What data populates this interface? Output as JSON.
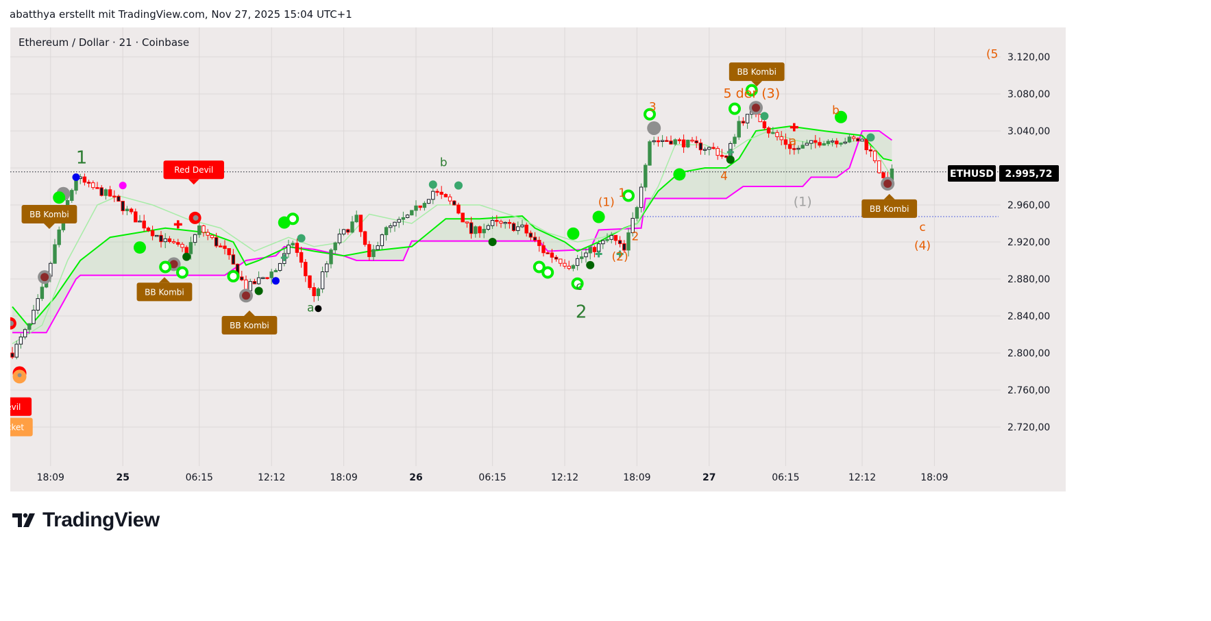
{
  "header": {
    "caption": "abatthya erstellt mit TradingView.com, Nov 27, 2025 15:04 UTC+1"
  },
  "chart": {
    "symbol_title": "Ethereum / Dollar · 21 · Coinbase"
  },
  "price_badge": {
    "ticker": "ETHUSD",
    "price": "2.995,72"
  },
  "logo": {
    "text": "TradingView"
  },
  "colors": {
    "up_green": "#3a8f4a",
    "down_red": "#ff0000",
    "band_magenta": "#ff00ff",
    "line_green": "#00ee00",
    "line_lightgreen": "#9ee89e",
    "callout_brown": "#a06000",
    "wave_orange": "#e65c00",
    "wave_green": "#2e7d32"
  },
  "chart_data": {
    "type": "candlestick",
    "title": "Ethereum / Dollar · 21 · Coinbase",
    "ylim": [
      2690,
      3150
    ],
    "y_ticks": [
      {
        "value": 3120,
        "label": "3.120,00"
      },
      {
        "value": 3080,
        "label": "3.080,00"
      },
      {
        "value": 3040,
        "label": "3.040,00"
      },
      {
        "value": 2960,
        "label": "2.960,00"
      },
      {
        "value": 2920,
        "label": "2.920,00"
      },
      {
        "value": 2880,
        "label": "2.880,00"
      },
      {
        "value": 2840,
        "label": "2.840,00"
      },
      {
        "value": 2800,
        "label": "2.800,00"
      },
      {
        "value": 2760,
        "label": "2.760,00"
      },
      {
        "value": 2720,
        "label": "2.720,00"
      }
    ],
    "x_ticks": [
      {
        "bar": 9,
        "label": "18:09",
        "bold": false
      },
      {
        "bar": 26,
        "label": "25",
        "bold": true
      },
      {
        "bar": 44,
        "label": "06:15",
        "bold": false
      },
      {
        "bar": 61,
        "label": "12:12",
        "bold": false
      },
      {
        "bar": 78,
        "label": "18:09",
        "bold": false
      },
      {
        "bar": 95,
        "label": "26",
        "bold": true
      },
      {
        "bar": 113,
        "label": "06:15",
        "bold": false
      },
      {
        "bar": 130,
        "label": "12:12",
        "bold": false
      },
      {
        "bar": 147,
        "label": "18:09",
        "bold": false
      },
      {
        "bar": 164,
        "label": "27",
        "bold": true
      },
      {
        "bar": 182,
        "label": "06:15",
        "bold": false
      },
      {
        "bar": 200,
        "label": "12:12",
        "bold": false
      },
      {
        "bar": 217,
        "label": "18:09",
        "bold": false
      }
    ],
    "last_price": 2995.72,
    "horizontal_line": 2947.4,
    "price_path": [
      [
        0,
        2800
      ],
      [
        4,
        2830
      ],
      [
        8,
        2880
      ],
      [
        12,
        2950
      ],
      [
        15,
        2990
      ],
      [
        18,
        2980
      ],
      [
        23,
        2970
      ],
      [
        29,
        2945
      ],
      [
        36,
        2920
      ],
      [
        41,
        2910
      ],
      [
        44,
        2935
      ],
      [
        50,
        2910
      ],
      [
        55,
        2870
      ],
      [
        62,
        2890
      ],
      [
        66,
        2920
      ],
      [
        71,
        2860
      ],
      [
        76,
        2920
      ],
      [
        81,
        2945
      ],
      [
        84,
        2900
      ],
      [
        87,
        2930
      ],
      [
        94,
        2950
      ],
      [
        99,
        2975
      ],
      [
        104,
        2960
      ],
      [
        108,
        2930
      ],
      [
        113,
        2940
      ],
      [
        120,
        2935
      ],
      [
        125,
        2910
      ],
      [
        131,
        2895
      ],
      [
        136,
        2910
      ],
      [
        141,
        2925
      ],
      [
        144,
        2910
      ],
      [
        147,
        2960
      ],
      [
        150,
        3030
      ],
      [
        155,
        3030
      ],
      [
        165,
        3020
      ],
      [
        168,
        3010
      ],
      [
        171,
        3050
      ],
      [
        175,
        3060
      ],
      [
        178,
        3040
      ],
      [
        184,
        3020
      ],
      [
        191,
        3030
      ],
      [
        200,
        3030
      ],
      [
        203,
        3010
      ],
      [
        205,
        2985
      ],
      [
        207,
        2995
      ]
    ],
    "series": [
      {
        "name": "lower band",
        "color": "#ff00ff",
        "points": [
          [
            0,
            2822
          ],
          [
            8,
            2822
          ],
          [
            12,
            2855
          ],
          [
            15,
            2880
          ],
          [
            16,
            2884
          ],
          [
            50,
            2884
          ],
          [
            55,
            2900
          ],
          [
            62,
            2905
          ],
          [
            64,
            2915
          ],
          [
            71,
            2912
          ],
          [
            78,
            2905
          ],
          [
            81,
            2900
          ],
          [
            92,
            2900
          ],
          [
            94,
            2921
          ],
          [
            124,
            2921
          ],
          [
            126,
            2910
          ],
          [
            136,
            2912
          ],
          [
            138,
            2933
          ],
          [
            148,
            2935
          ],
          [
            149,
            2967
          ],
          [
            168,
            2967
          ],
          [
            172,
            2980
          ],
          [
            186,
            2980
          ],
          [
            188,
            2990
          ],
          [
            194,
            2990
          ],
          [
            197,
            3000
          ],
          [
            200,
            3040
          ],
          [
            204,
            3040
          ],
          [
            207,
            3030
          ]
        ]
      },
      {
        "name": "fast line",
        "color": "#00ee00",
        "points": [
          [
            0,
            2850
          ],
          [
            4,
            2828
          ],
          [
            10,
            2860
          ],
          [
            16,
            2900
          ],
          [
            23,
            2925
          ],
          [
            36,
            2935
          ],
          [
            46,
            2930
          ],
          [
            52,
            2920
          ],
          [
            55,
            2895
          ],
          [
            58,
            2900
          ],
          [
            65,
            2915
          ],
          [
            71,
            2910
          ],
          [
            78,
            2905
          ],
          [
            84,
            2910
          ],
          [
            94,
            2915
          ],
          [
            102,
            2945
          ],
          [
            110,
            2945
          ],
          [
            120,
            2948
          ],
          [
            123,
            2935
          ],
          [
            130,
            2920
          ],
          [
            133,
            2910
          ],
          [
            138,
            2920
          ],
          [
            144,
            2935
          ],
          [
            147,
            2940
          ],
          [
            152,
            2975
          ],
          [
            157,
            2995
          ],
          [
            163,
            3000
          ],
          [
            168,
            3000
          ],
          [
            171,
            3010
          ],
          [
            175,
            3040
          ],
          [
            183,
            3045
          ],
          [
            191,
            3040
          ],
          [
            200,
            3035
          ],
          [
            205,
            3010
          ],
          [
            207,
            3008
          ]
        ]
      },
      {
        "name": "slow line",
        "color": "#a8eca8",
        "points": [
          [
            0,
            2810
          ],
          [
            7,
            2830
          ],
          [
            13,
            2900
          ],
          [
            20,
            2960
          ],
          [
            25,
            2970
          ],
          [
            33,
            2960
          ],
          [
            41,
            2945
          ],
          [
            49,
            2935
          ],
          [
            57,
            2910
          ],
          [
            65,
            2925
          ],
          [
            71,
            2915
          ],
          [
            78,
            2920
          ],
          [
            84,
            2950
          ],
          [
            94,
            2940
          ],
          [
            100,
            2960
          ],
          [
            110,
            2960
          ],
          [
            120,
            2945
          ],
          [
            126,
            2930
          ],
          [
            133,
            2920
          ],
          [
            139,
            2925
          ],
          [
            147,
            2940
          ],
          [
            152,
            2980
          ],
          [
            156,
            3025
          ],
          [
            163,
            3025
          ],
          [
            168,
            3015
          ],
          [
            173,
            3030
          ],
          [
            178,
            3040
          ],
          [
            184,
            3030
          ],
          [
            191,
            3025
          ],
          [
            200,
            3030
          ],
          [
            203,
            3020
          ],
          [
            207,
            2990
          ]
        ]
      }
    ],
    "markers": [
      {
        "type": "grey-ring-red",
        "bar": 7.6,
        "price": 2882
      },
      {
        "type": "grey-ring-red",
        "bar": 38,
        "price": 2896
      },
      {
        "type": "grey-ring-red",
        "bar": 55,
        "price": 2862
      },
      {
        "type": "grey-ring-red",
        "bar": 175,
        "price": 3065
      },
      {
        "type": "grey-ring-red",
        "bar": 206,
        "price": 2983
      },
      {
        "type": "grey-big",
        "bar": 12,
        "price": 2972
      },
      {
        "type": "grey-big",
        "bar": 151,
        "price": 3043
      },
      {
        "type": "green-big",
        "bar": 11,
        "price": 2968
      },
      {
        "type": "green-big",
        "bar": 30,
        "price": 2914
      },
      {
        "type": "green-big",
        "bar": 64,
        "price": 2941
      },
      {
        "type": "green-big",
        "bar": 132,
        "price": 2929
      },
      {
        "type": "green-big",
        "bar": 138,
        "price": 2947
      },
      {
        "type": "green-big",
        "bar": 157,
        "price": 2993
      },
      {
        "type": "green-big",
        "bar": 195,
        "price": 3055
      },
      {
        "type": "green-ring",
        "bar": 36,
        "price": 2893
      },
      {
        "type": "green-ring",
        "bar": 40,
        "price": 2887
      },
      {
        "type": "green-ring",
        "bar": 52,
        "price": 2883
      },
      {
        "type": "green-ring",
        "bar": 66,
        "price": 2945
      },
      {
        "type": "green-ring",
        "bar": 124,
        "price": 2893
      },
      {
        "type": "green-ring",
        "bar": 126,
        "price": 2887
      },
      {
        "type": "green-ring",
        "bar": 133,
        "price": 2875
      },
      {
        "type": "green-ring",
        "bar": 145,
        "price": 2970
      },
      {
        "type": "green-ring",
        "bar": 150,
        "price": 3058
      },
      {
        "type": "green-ring",
        "bar": 170,
        "price": 3064
      },
      {
        "type": "green-ring",
        "bar": 174,
        "price": 3084
      },
      {
        "type": "dark-green",
        "bar": 41,
        "price": 2904
      },
      {
        "type": "dark-green",
        "bar": 58,
        "price": 2867
      },
      {
        "type": "dark-green",
        "bar": 113,
        "price": 2920
      },
      {
        "type": "dark-green",
        "bar": 136,
        "price": 2895
      },
      {
        "type": "dark-green",
        "bar": 169,
        "price": 3009
      },
      {
        "type": "teal",
        "bar": 68,
        "price": 2924
      },
      {
        "type": "teal",
        "bar": 99,
        "price": 2982
      },
      {
        "type": "teal",
        "bar": 105,
        "price": 2981
      },
      {
        "type": "teal",
        "bar": 177,
        "price": 3056
      },
      {
        "type": "teal",
        "bar": 202,
        "price": 3033
      },
      {
        "type": "blue",
        "bar": 15,
        "price": 2990
      },
      {
        "type": "blue",
        "bar": 62,
        "price": 2878
      },
      {
        "type": "magenta",
        "bar": 26,
        "price": 2981
      },
      {
        "type": "red",
        "bar": 43,
        "price": 2946
      },
      {
        "type": "red",
        "bar": -0.5,
        "price": 2832
      },
      {
        "type": "red-orange",
        "bar": 1.7,
        "price": 2776
      },
      {
        "type": "black",
        "bar": 72,
        "price": 2848
      },
      {
        "type": "red-cross",
        "bar": 39,
        "price": 2939
      },
      {
        "type": "red-cross",
        "bar": 184,
        "price": 3044
      },
      {
        "type": "green-cross",
        "bar": 64,
        "price": 2903
      },
      {
        "type": "green-cross",
        "bar": 138,
        "price": 2907
      },
      {
        "type": "green-cross",
        "bar": 143,
        "price": 2907
      },
      {
        "type": "green-cross",
        "bar": 169,
        "price": 3017
      }
    ],
    "wave_labels": [
      {
        "text": "1",
        "bar": 16.3,
        "price": 3005,
        "color": "green",
        "size": "big"
      },
      {
        "text": "a",
        "bar": 70.2,
        "price": 2845,
        "color": "green",
        "size": "small"
      },
      {
        "text": "b",
        "bar": 101.5,
        "price": 3002,
        "color": "green",
        "size": "small"
      },
      {
        "text": "c",
        "bar": 133.4,
        "price": 2868,
        "color": "green",
        "size": "small"
      },
      {
        "text": "2",
        "bar": 133.9,
        "price": 2838,
        "color": "green",
        "size": "big"
      },
      {
        "text": "1",
        "bar": 143.5,
        "price": 2969,
        "color": "orange",
        "size": "small"
      },
      {
        "text": "(1)",
        "bar": 139.8,
        "price": 2959,
        "color": "orange",
        "size": "small"
      },
      {
        "text": "2",
        "bar": 146.6,
        "price": 2922,
        "color": "orange",
        "size": "small"
      },
      {
        "text": "(2)",
        "bar": 143,
        "price": 2900,
        "color": "orange",
        "size": "small"
      },
      {
        "text": "3",
        "bar": 150.7,
        "price": 3062,
        "color": "orange",
        "size": "small"
      },
      {
        "text": "4",
        "bar": 167.5,
        "price": 2987,
        "color": "orange",
        "size": "small"
      },
      {
        "text": "5 der (3)",
        "bar": 174,
        "price": 3076,
        "color": "orange",
        "size": "mid"
      },
      {
        "text": "a",
        "bar": 183.7,
        "price": 3025,
        "color": "orange",
        "size": "small"
      },
      {
        "text": "b",
        "bar": 193.8,
        "price": 3058,
        "color": "orange",
        "size": "small"
      },
      {
        "text": "(1)",
        "bar": 186,
        "price": 2959,
        "color": "grey",
        "size": "mid"
      },
      {
        "text": "c",
        "bar": 214.2,
        "price": 2932,
        "color": "orange",
        "size": "small"
      },
      {
        "text": "(4)",
        "bar": 214.2,
        "price": 2912,
        "color": "orange",
        "size": "small"
      },
      {
        "text": "(5",
        "bar": 230.6,
        "price": 3119,
        "color": "orange",
        "size": "small"
      }
    ],
    "callouts": [
      {
        "text": "BB Kombi",
        "bar": 8.7,
        "price": 2950,
        "color": "#a06000",
        "pointer": "down"
      },
      {
        "text": "BB Kombi",
        "bar": 35.8,
        "price": 2866,
        "color": "#a06000",
        "pointer": "up"
      },
      {
        "text": "BB Kombi",
        "bar": 55.8,
        "price": 2830,
        "color": "#a06000",
        "pointer": "up"
      },
      {
        "text": "BB Kombi",
        "bar": 175.2,
        "price": 3104,
        "color": "#a06000",
        "pointer": "down"
      },
      {
        "text": "BB Kombi",
        "bar": 206.4,
        "price": 2956,
        "color": "#a06000",
        "pointer": "up"
      },
      {
        "text": "Red Devil",
        "bar": 42.7,
        "price": 2998,
        "color": "#ff0000",
        "pointer": "down"
      },
      {
        "text": "Red Devil",
        "bar": -2.6,
        "price": 2742,
        "color": "#ff0000",
        "pointer": "up"
      },
      {
        "text": "Rocket",
        "bar": -0.5,
        "price": 2720,
        "color": "#ff9f43",
        "pointer": "none"
      }
    ]
  }
}
